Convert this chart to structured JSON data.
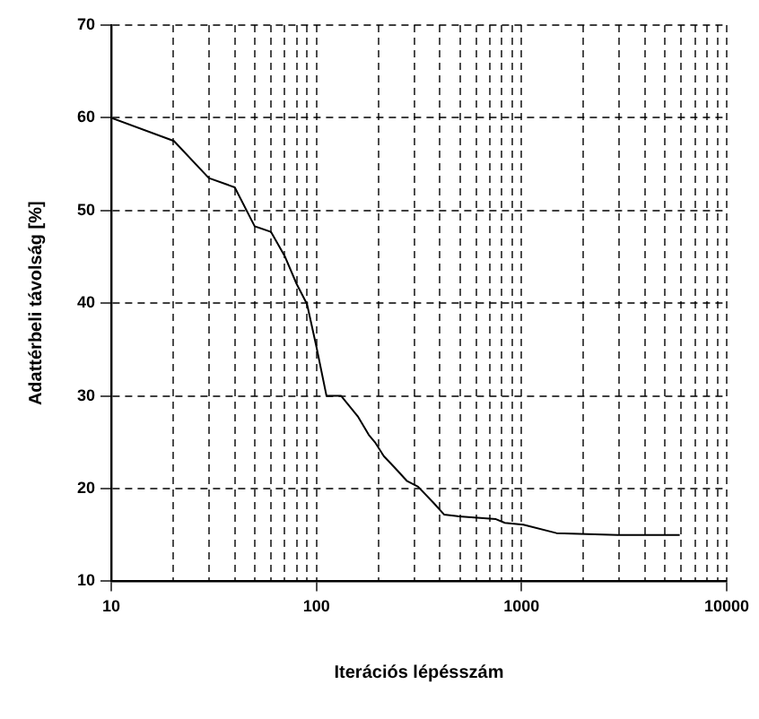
{
  "chart_data": {
    "type": "line",
    "xlabel": "Iterációs lépésszám",
    "ylabel": "Adattérbeli távolság [%]",
    "x": [
      10,
      20.2,
      29.9,
      40,
      50,
      60,
      70,
      80,
      90,
      100,
      112,
      132,
      159,
      180,
      193,
      213,
      240,
      277,
      313,
      371,
      419,
      494,
      750,
      830,
      1020,
      1480,
      2940,
      5900
    ],
    "series": [
      {
        "color": "#000000",
        "values": [
          60,
          57.5,
          53.5,
          52.5,
          48.3,
          47.7,
          45.1,
          42.1,
          39.9,
          35.3,
          30,
          30,
          27.8,
          25.8,
          25,
          23.5,
          22.3,
          20.8,
          20.2,
          18.5,
          17.2,
          17,
          16.7,
          16.3,
          16.1,
          15.2,
          15,
          15
        ]
      }
    ],
    "log": "x",
    "xlim": [
      10,
      10000
    ],
    "xticks": [
      10,
      {
        "value": 20,
        "label": null
      },
      {
        "value": 30,
        "label": null
      },
      {
        "value": 40,
        "label": null
      },
      {
        "value": 50,
        "label": null
      },
      {
        "value": 60,
        "label": null
      },
      {
        "value": 70,
        "label": null
      },
      {
        "value": 80,
        "label": null
      },
      {
        "value": 90,
        "label": null
      },
      100,
      {
        "value": 200,
        "label": null
      },
      {
        "value": 300,
        "label": null
      },
      {
        "value": 400,
        "label": null
      },
      {
        "value": 500,
        "label": null
      },
      {
        "value": 600,
        "label": null
      },
      {
        "value": 700,
        "label": null
      },
      {
        "value": 800,
        "label": null
      },
      {
        "value": 900,
        "label": null
      },
      1000,
      {
        "value": 2000,
        "label": null
      },
      {
        "value": 3000,
        "label": null
      },
      {
        "value": 4000,
        "label": null
      },
      {
        "value": 5000,
        "label": null
      },
      {
        "value": 6000,
        "label": null
      },
      {
        "value": 7000,
        "label": null
      },
      {
        "value": 8000,
        "label": null
      },
      {
        "value": 9000,
        "label": null
      },
      10000
    ],
    "ylim": [
      10,
      70
    ],
    "yticks": [
      10,
      20,
      30,
      40,
      50,
      60,
      70
    ],
    "grid": true,
    "marker": "none",
    "line_style": "solid",
    "legend": false
  }
}
